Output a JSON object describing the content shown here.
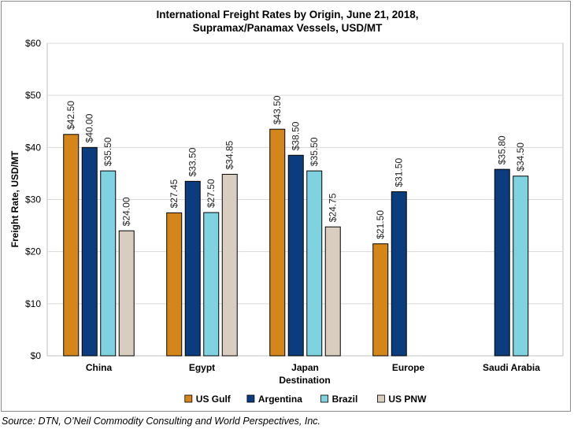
{
  "chart_data": {
    "type": "bar",
    "title": "International Freight Rates by Origin, June 21, 2018,",
    "subtitle": "Supramax/Panamax Vessels, USD/MT",
    "xlabel": "Destination",
    "ylabel": "Freight Rate, USD/MT",
    "categories": [
      "China",
      "Egypt",
      "Japan",
      "Europe",
      "Saudi Arabia"
    ],
    "ylim": [
      0,
      60
    ],
    "yticks": [
      0,
      10,
      20,
      30,
      40,
      50,
      60
    ],
    "ytick_labels": [
      "$0",
      "$10",
      "$20",
      "$30",
      "$40",
      "$50",
      "$60"
    ],
    "grid": true,
    "legend_position": "bottom",
    "series": [
      {
        "name": "US Gulf",
        "color": "#D4861A",
        "values": [
          42.5,
          27.45,
          43.5,
          21.5,
          null
        ],
        "labels": [
          "$42.50",
          "$27.45",
          "$43.50",
          "$21.50",
          null
        ]
      },
      {
        "name": "Argentina",
        "color": "#0B3C7D",
        "values": [
          40.0,
          33.5,
          38.5,
          31.5,
          35.8
        ],
        "labels": [
          "$40.00",
          "$33.50",
          "$38.50",
          "$31.50",
          "$35.80"
        ]
      },
      {
        "name": "Brazil",
        "color": "#7FD2E0",
        "values": [
          35.5,
          27.5,
          35.5,
          null,
          34.5
        ],
        "labels": [
          "$35.50",
          "$27.50",
          "$35.50",
          null,
          "$34.50"
        ]
      },
      {
        "name": "US PNW",
        "color": "#D8CDBE",
        "values": [
          24.0,
          34.85,
          24.75,
          null,
          null
        ],
        "labels": [
          "$24.00",
          "$34.85",
          "$24.75",
          null,
          null
        ]
      }
    ]
  },
  "source": "Source: DTN, O’Neil Commodity Consulting and World Perspectives, Inc."
}
